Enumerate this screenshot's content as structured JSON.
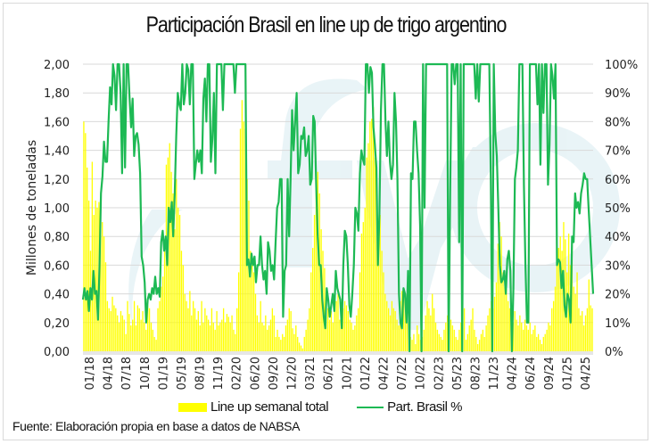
{
  "chart_data": {
    "type": "bar+line",
    "title": "Participación Brasil en line up de trigo argentino",
    "ylabel": "Millones de toneladas",
    "y2label": "",
    "ylim": [
      0,
      2.0
    ],
    "y2lim": [
      0,
      100
    ],
    "yticks": [
      "0,00",
      "0,20",
      "0,40",
      "0,60",
      "0,80",
      "1,00",
      "1,20",
      "1,40",
      "1,60",
      "1,80",
      "2,00"
    ],
    "y2ticks": [
      "0%",
      "10%",
      "20%",
      "30%",
      "40%",
      "50%",
      "60%",
      "70%",
      "80%",
      "90%",
      "100%"
    ],
    "xticks": [
      "01/18",
      "04/18",
      "07/18",
      "10/18",
      "01/19",
      "05/19",
      "08/19",
      "11/19",
      "02/20",
      "06/20",
      "09/20",
      "12/20",
      "03/21",
      "06/21",
      "10/21",
      "01/22",
      "04/22",
      "07/22",
      "10/22",
      "02/23",
      "05/23",
      "08/23",
      "11/23",
      "04/24",
      "06/24",
      "09/24",
      "01/25",
      "04/25"
    ],
    "grid": true,
    "legend_position": "bottom",
    "series": [
      {
        "name": "Line up semanal total",
        "type": "bar",
        "color": "#ffff00",
        "axis": "left",
        "values": [
          1.6,
          1.52,
          1.28,
          1.05,
          0.7,
          1.32,
          0.95,
          1.05,
          1.0,
          1.04,
          0.95,
          0.9,
          0.8,
          0.62,
          0.35,
          0.3,
          0.28,
          0.38,
          0.32,
          0.3,
          0.25,
          0.2,
          0.28,
          0.25,
          0.22,
          0.12,
          0.35,
          0.26,
          0.18,
          0.22,
          0.35,
          0.18,
          0.32,
          0.3,
          0.22,
          0.28,
          0.2,
          0.15,
          0.32,
          0.3,
          0.2,
          0.15,
          0.1,
          0.08,
          0.3,
          0.35,
          0.45,
          0.52,
          0.7,
          1.3,
          1.35,
          1.45,
          1.25,
          1.1,
          0.85,
          1.2,
          1.0,
          0.95,
          0.7,
          0.6,
          0.4,
          0.35,
          0.3,
          0.42,
          0.25,
          0.35,
          0.3,
          0.22,
          0.28,
          0.18,
          0.35,
          0.2,
          0.3,
          0.25,
          0.22,
          0.18,
          0.3,
          0.2,
          0.15,
          0.28,
          0.18,
          0.2,
          0.22,
          0.3,
          0.2,
          0.26,
          0.24,
          0.2,
          0.25,
          0.15,
          0.12,
          0.3,
          0.55,
          1.55,
          1.75,
          1.6,
          1.55,
          1.2,
          1.05,
          0.7,
          0.6,
          0.55,
          0.4,
          0.25,
          0.2,
          0.35,
          0.2,
          0.18,
          0.25,
          0.15,
          0.18,
          0.22,
          0.3,
          0.25,
          0.1,
          0.15,
          0.1,
          0.08,
          0.12,
          0.1,
          0.18,
          0.22,
          0.3,
          0.28,
          0.16,
          0.12,
          0.18,
          0.1,
          0.06,
          0.04,
          0.02,
          0.1,
          0.15,
          0.22,
          0.3,
          0.55,
          0.72,
          0.95,
          1.18,
          1.25,
          1.1,
          0.85,
          0.7,
          0.58,
          0.38,
          0.3,
          0.22,
          0.28,
          0.2,
          0.32,
          0.35,
          0.4,
          0.22,
          0.25,
          0.3,
          0.35,
          0.32,
          0.28,
          0.22,
          0.2,
          0.15,
          0.18,
          0.25,
          0.3,
          0.55,
          0.82,
          0.9,
          1.0,
          1.35,
          1.45,
          1.6,
          1.62,
          1.7,
          1.35,
          1.1,
          0.85,
          0.95,
          0.7,
          0.55,
          0.4,
          0.35,
          0.3,
          0.25,
          0.35,
          0.3,
          0.28,
          0.22,
          0.18,
          0.35,
          0.42,
          0.38,
          0.4,
          0.2,
          0.15,
          0.1,
          0.08,
          0.12,
          0.05,
          0.18,
          0.12,
          0.08,
          0.1,
          0.15,
          0.25,
          0.35,
          0.3,
          0.25,
          0.4,
          0.3,
          0.2,
          0.15,
          0.12,
          0.1,
          0.08,
          0.15,
          0.2,
          0.25,
          0.3,
          0.22,
          0.18,
          0.15,
          0.1,
          0.08,
          0.15,
          0.2,
          0.25,
          0.3,
          0.08,
          0.12,
          0.18,
          0.22,
          0.3,
          0.15,
          0.1,
          0.05,
          0.08,
          0.12,
          0.15,
          0.1,
          0.18,
          0.25,
          0.3,
          0.35,
          0.3,
          0.38,
          0.48,
          0.75,
          0.9,
          0.8,
          0.55,
          0.45,
          0.52,
          0.35,
          0.3,
          0.25,
          0.2,
          0.28,
          0.22,
          0.18,
          0.25,
          0.2,
          0.15,
          0.22,
          0.18,
          0.15,
          0.2,
          0.12,
          0.15,
          0.18,
          0.1,
          0.12,
          0.08,
          0.05,
          0.1,
          0.12,
          0.15,
          0.2,
          0.18,
          0.3,
          0.35,
          0.45,
          0.65,
          0.72,
          0.8,
          0.7,
          0.9,
          0.78,
          0.55,
          0.82,
          0.6,
          0.75,
          0.45,
          0.4,
          0.55,
          0.3,
          0.25,
          0.28,
          0.18,
          0.25,
          0.3,
          0.5,
          0.32,
          0.3
        ]
      },
      {
        "name": "Part. Brasil %",
        "type": "line",
        "color": "#1db954",
        "axis": "right",
        "values": [
          18,
          22,
          18,
          21,
          14,
          22,
          18,
          28,
          20,
          21,
          11,
          30,
          55,
          61,
          73,
          66,
          66,
          80,
          92,
          86,
          100,
          96,
          84,
          100,
          100,
          90,
          62,
          100,
          64,
          100,
          100,
          88,
          78,
          88,
          68,
          75,
          76,
          72,
          62,
          33,
          30,
          24,
          10,
          18,
          20,
          18,
          22,
          20,
          26,
          20,
          22,
          19,
          38,
          42,
          35,
          40,
          30,
          50,
          45,
          52,
          40,
          55,
          75,
          90,
          86,
          84,
          100,
          86,
          90,
          100,
          98,
          86,
          100,
          100,
          60,
          65,
          70,
          66,
          70,
          62,
          88,
          95,
          80,
          100,
          100,
          66,
          74,
          90,
          62,
          100,
          100,
          100,
          100,
          84,
          100,
          100,
          100,
          100,
          100,
          100,
          100,
          90,
          100,
          100,
          100,
          100,
          100,
          100,
          100,
          30,
          32,
          26,
          34,
          30,
          33,
          24,
          30,
          30,
          40,
          30,
          25,
          28,
          20,
          38,
          35,
          28,
          30,
          25,
          38,
          50,
          52,
          60,
          60,
          12,
          28,
          30,
          60,
          40,
          60,
          84,
          70,
          80,
          90,
          62,
          65,
          75,
          74,
          78,
          68,
          70,
          75,
          58,
          60,
          82,
          80,
          58,
          40,
          30,
          30,
          18,
          12,
          8,
          22,
          18,
          12,
          16,
          20,
          14,
          28,
          22,
          20,
          18,
          8,
          30,
          42,
          40,
          30,
          16,
          12,
          20,
          30,
          50,
          48,
          42,
          62,
          70,
          67,
          65,
          100,
          100,
          90,
          99,
          97,
          78,
          72,
          64,
          30,
          48,
          84,
          100,
          100,
          80,
          68,
          80,
          66,
          60,
          65,
          90,
          80,
          60,
          20,
          10,
          8,
          22,
          20,
          10,
          28,
          0,
          62,
          60,
          80,
          80,
          70,
          62,
          44,
          0,
          100,
          50,
          100,
          100,
          100,
          100,
          100,
          100,
          100,
          100,
          100,
          100,
          100,
          100,
          100,
          100,
          100,
          0,
          55,
          100,
          100,
          93,
          100,
          100,
          38,
          100,
          0,
          100,
          100,
          100,
          100,
          100,
          100,
          100,
          100,
          88,
          100,
          87,
          100,
          100,
          100,
          100,
          100,
          100,
          100,
          60,
          0,
          100,
          76,
          68,
          50,
          30,
          24,
          25,
          28,
          20,
          32,
          35,
          28,
          0,
          22,
          60,
          64,
          70,
          100,
          100,
          100,
          58,
          30,
          10,
          10,
          100,
          100,
          100,
          100,
          100,
          86,
          100,
          65,
          100,
          83,
          100,
          100,
          58,
          72,
          100,
          96,
          88,
          100,
          30,
          32,
          31,
          22,
          28,
          16,
          12,
          20,
          18,
          10,
          40,
          38,
          55,
          50,
          52,
          48,
          55,
          58,
          62,
          60,
          60,
          50,
          40,
          30,
          20
        ]
      }
    ]
  },
  "footer": {
    "legend_bar": "Line up semanal total",
    "legend_line": "Part. Brasil %",
    "source": "Fuente: Elaboración propia en base a datos de NABSA"
  }
}
